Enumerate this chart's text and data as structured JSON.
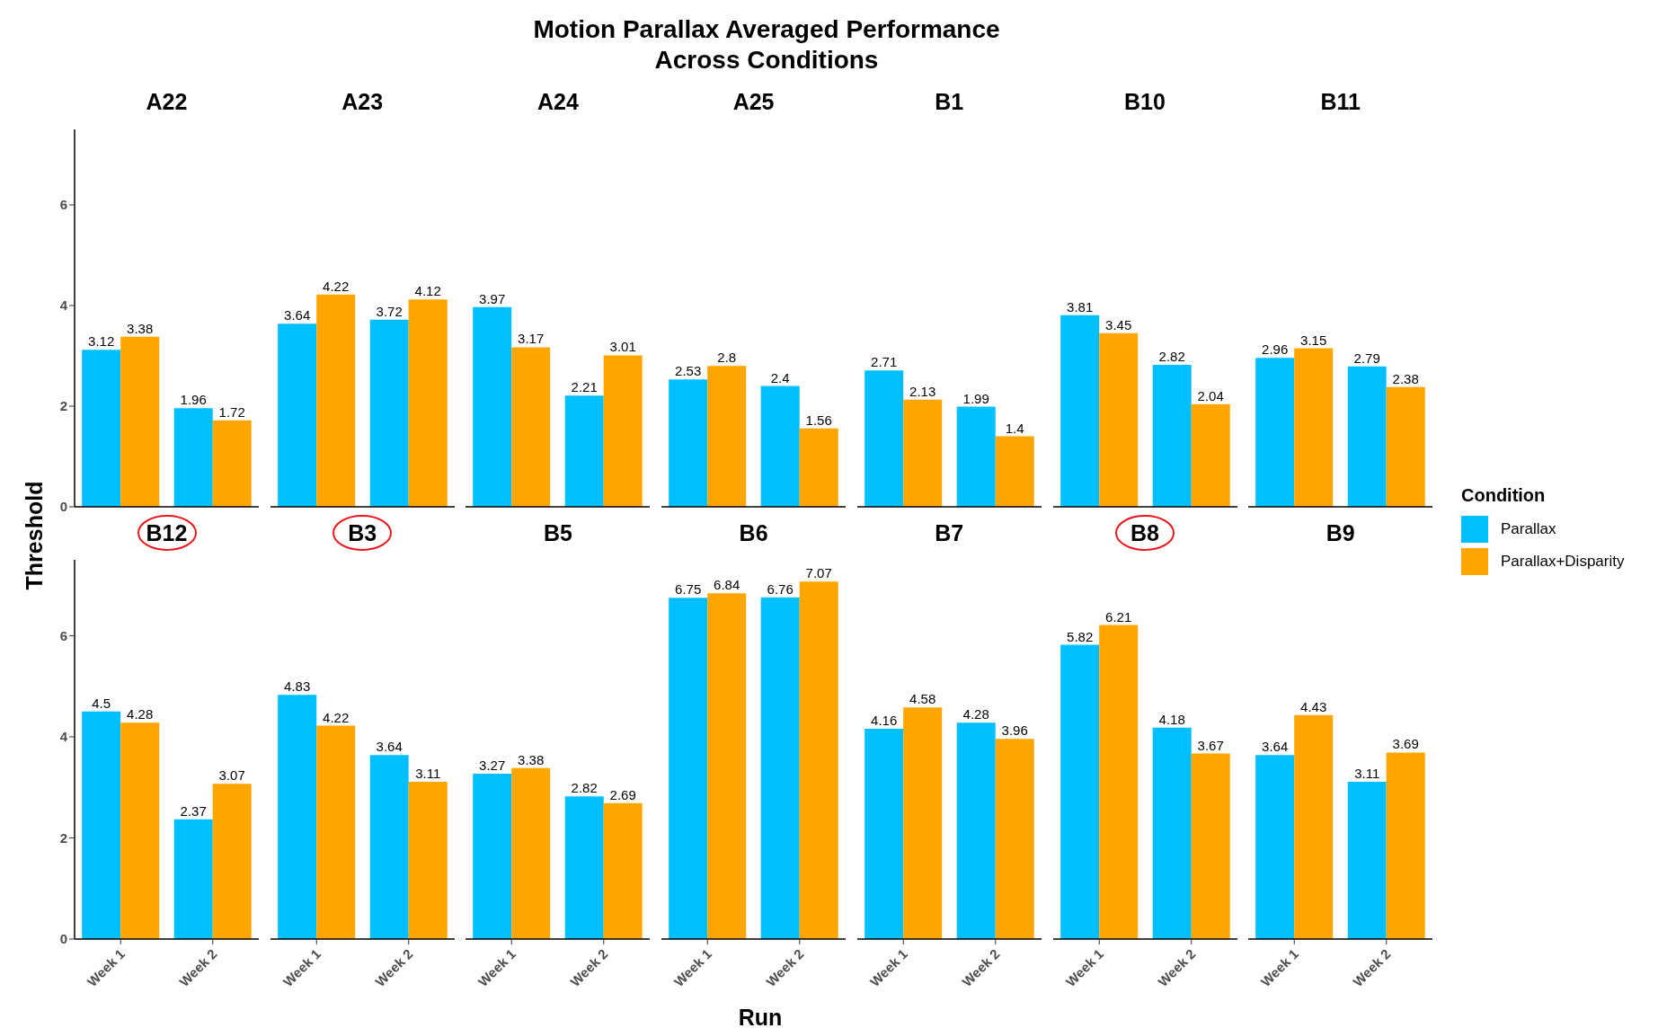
{
  "chart_data": [
    {
      "type": "other",
      "title": "Motion Parallax Averaged Performance\nAcross Conditions",
      "xlabel": "Run",
      "ylabel": "Threshold"
    },
    {
      "type": "bar",
      "title": "A22",
      "categories": [
        null,
        null
      ],
      "ylim": [
        0,
        7.5
      ],
      "yticks": [
        0,
        2,
        4,
        6
      ],
      "tick_labels": "y",
      "data_labels": true,
      "legend": "right",
      "legend_title": "Condition",
      "series": [
        {
          "name": "Parallax",
          "color": "#00bfff",
          "values": [
            3.12,
            1.96
          ]
        },
        {
          "name": "Parallax+Disparity",
          "color": "#ffa500",
          "values": [
            3.38,
            1.72
          ]
        }
      ]
    },
    {
      "type": "bar",
      "title": "A23",
      "categories": [
        null,
        null
      ],
      "tick_labels": false,
      "data_labels": true,
      "series": [
        {
          "color": "#00bfff",
          "values": [
            3.64,
            3.72
          ]
        },
        {
          "color": "#ffa500",
          "values": [
            4.22,
            4.12
          ]
        }
      ]
    },
    {
      "type": "bar",
      "title": "A24",
      "categories": [
        null,
        null
      ],
      "tick_labels": false,
      "data_labels": true,
      "series": [
        {
          "color": "#00bfff",
          "values": [
            3.97,
            2.21
          ]
        },
        {
          "color": "#ffa500",
          "values": [
            3.17,
            3.01
          ]
        }
      ]
    },
    {
      "type": "bar",
      "title": "A25",
      "categories": [
        null,
        null
      ],
      "tick_labels": false,
      "data_labels": true,
      "series": [
        {
          "color": "#00bfff",
          "values": [
            2.53,
            2.4
          ]
        },
        {
          "color": "#ffa500",
          "values": [
            2.8,
            1.56
          ]
        }
      ]
    },
    {
      "type": "bar",
      "title": "B1",
      "categories": [
        null,
        null
      ],
      "tick_labels": false,
      "data_labels": true,
      "series": [
        {
          "color": "#00bfff",
          "values": [
            2.71,
            1.99
          ]
        },
        {
          "color": "#ffa500",
          "values": [
            2.13,
            1.4
          ]
        }
      ]
    },
    {
      "type": "bar",
      "title": "B10",
      "categories": [
        null,
        null
      ],
      "tick_labels": false,
      "data_labels": true,
      "series": [
        {
          "color": "#00bfff",
          "values": [
            3.81,
            2.82
          ]
        },
        {
          "color": "#ffa500",
          "values": [
            3.45,
            2.04
          ]
        }
      ]
    },
    {
      "type": "bar",
      "title": "B11",
      "categories": [
        null,
        null
      ],
      "tick_labels": false,
      "data_labels": true,
      "series": [
        {
          "color": "#00bfff",
          "values": [
            2.96,
            2.79
          ]
        },
        {
          "color": "#ffa500",
          "values": [
            3.15,
            2.38
          ]
        }
      ]
    },
    {
      "type": "bar",
      "title": "B12",
      "categories": [
        "Week 1",
        "Week 2"
      ],
      "ylim": [
        0,
        7.5
      ],
      "yticks": [
        0,
        2,
        4,
        6
      ],
      "data_labels": true,
      "series": [
        {
          "color": "#00bfff",
          "values": [
            4.5,
            2.37
          ]
        },
        {
          "color": "#ffa500",
          "values": [
            4.28,
            3.07
          ]
        }
      ]
    },
    {
      "type": "bar",
      "title": "B3",
      "categories": [
        "Week 1",
        "Week 2"
      ],
      "tick_labels": "x",
      "data_labels": true,
      "series": [
        {
          "color": "#00bfff",
          "values": [
            4.83,
            3.64
          ]
        },
        {
          "color": "#ffa500",
          "values": [
            4.22,
            3.11
          ]
        }
      ]
    },
    {
      "type": "bar",
      "title": "B5",
      "categories": [
        "Week 1",
        "Week 2"
      ],
      "tick_labels": "x",
      "data_labels": true,
      "series": [
        {
          "color": "#00bfff",
          "values": [
            3.27,
            2.82
          ]
        },
        {
          "color": "#ffa500",
          "values": [
            3.38,
            2.69
          ]
        }
      ]
    },
    {
      "type": "bar",
      "title": "B6",
      "categories": [
        "Week 1",
        "Week 2"
      ],
      "tick_labels": "x",
      "data_labels": true,
      "series": [
        {
          "color": "#00bfff",
          "values": [
            6.75,
            6.76
          ]
        },
        {
          "color": "#ffa500",
          "values": [
            6.84,
            7.07
          ]
        }
      ]
    },
    {
      "type": "bar",
      "title": "B7",
      "categories": [
        "Week 1",
        "Week 2"
      ],
      "tick_labels": "x",
      "data_labels": true,
      "series": [
        {
          "color": "#00bfff",
          "values": [
            4.16,
            4.28
          ]
        },
        {
          "color": "#ffa500",
          "values": [
            4.58,
            3.96
          ]
        }
      ]
    },
    {
      "type": "bar",
      "title": "B8",
      "categories": [
        "Week 1",
        "Week 2"
      ],
      "tick_labels": "x",
      "data_labels": true,
      "series": [
        {
          "color": "#00bfff",
          "values": [
            5.82,
            4.18
          ]
        },
        {
          "color": "#ffa500",
          "values": [
            6.21,
            3.67
          ]
        }
      ]
    },
    {
      "type": "bar",
      "title": "B9",
      "categories": [
        "Week 1",
        "Week 2"
      ],
      "tick_labels": "x",
      "data_labels": true,
      "series": [
        {
          "color": "#00bfff",
          "values": [
            3.64,
            3.11
          ]
        },
        {
          "color": "#ffa500",
          "values": [
            4.43,
            3.69
          ]
        }
      ]
    }
  ]
}
